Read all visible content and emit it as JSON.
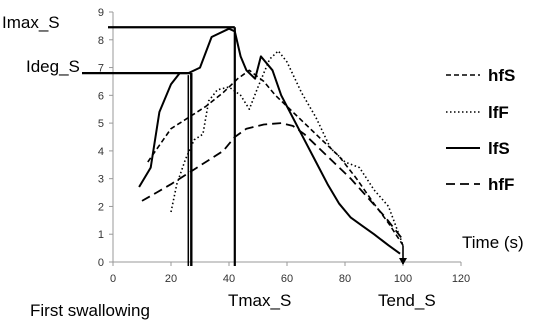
{
  "chart_data": {
    "type": "line",
    "title": "",
    "xlabel": "Time (s)",
    "ylabel": "",
    "xlim": [
      0,
      120
    ],
    "ylim": [
      0,
      9
    ],
    "x_ticks": [
      0,
      20,
      40,
      60,
      80,
      100,
      120
    ],
    "y_ticks": [
      0,
      1,
      2,
      3,
      4,
      5,
      6,
      7,
      8,
      9
    ],
    "grid": false,
    "legend_position": "right",
    "legend": [
      "hfS",
      "lfF",
      "lfS",
      "hfF"
    ],
    "series": [
      {
        "name": "hfS",
        "style": "dashed",
        "points": [
          [
            12,
            3.6
          ],
          [
            16,
            4.2
          ],
          [
            20,
            4.8
          ],
          [
            26,
            5.2
          ],
          [
            32,
            5.6
          ],
          [
            38,
            6.1
          ],
          [
            43,
            6.6
          ],
          [
            47,
            6.9
          ],
          [
            52,
            6.5
          ],
          [
            56,
            6.0
          ],
          [
            60,
            5.6
          ],
          [
            66,
            5.0
          ],
          [
            72,
            4.4
          ],
          [
            78,
            3.8
          ],
          [
            84,
            3.0
          ],
          [
            90,
            2.1
          ],
          [
            95,
            1.4
          ],
          [
            100,
            0.6
          ]
        ]
      },
      {
        "name": "lfF",
        "style": "dotted",
        "points": [
          [
            20,
            1.8
          ],
          [
            22,
            2.8
          ],
          [
            25,
            3.7
          ],
          [
            28,
            4.4
          ],
          [
            31,
            4.6
          ],
          [
            33,
            5.8
          ],
          [
            36,
            6.2
          ],
          [
            40,
            6.3
          ],
          [
            44,
            6.0
          ],
          [
            47,
            5.5
          ],
          [
            50,
            6.3
          ],
          [
            54,
            7.3
          ],
          [
            57,
            7.6
          ],
          [
            60,
            7.2
          ],
          [
            65,
            6.1
          ],
          [
            70,
            5.2
          ],
          [
            75,
            4.1
          ],
          [
            80,
            3.6
          ],
          [
            85,
            3.4
          ],
          [
            90,
            2.6
          ],
          [
            95,
            2.0
          ],
          [
            100,
            0.6
          ]
        ]
      },
      {
        "name": "lfS",
        "style": "solid",
        "points": [
          [
            9,
            2.7
          ],
          [
            13,
            3.4
          ],
          [
            16,
            5.4
          ],
          [
            20,
            6.4
          ],
          [
            23,
            6.8
          ],
          [
            26,
            6.8
          ],
          [
            30,
            7.0
          ],
          [
            34,
            8.1
          ],
          [
            40,
            8.4
          ],
          [
            42,
            8.3
          ],
          [
            44,
            7.4
          ],
          [
            46,
            6.9
          ],
          [
            49,
            6.6
          ],
          [
            51,
            7.4
          ],
          [
            55,
            6.9
          ],
          [
            58,
            6.0
          ],
          [
            62,
            5.2
          ],
          [
            66,
            4.4
          ],
          [
            70,
            3.6
          ],
          [
            74,
            2.8
          ],
          [
            78,
            2.1
          ],
          [
            82,
            1.6
          ],
          [
            86,
            1.3
          ],
          [
            90,
            1.0
          ],
          [
            95,
            0.6
          ],
          [
            99,
            0.3
          ]
        ]
      },
      {
        "name": "hfF",
        "style": "long-dashed",
        "points": [
          [
            10,
            2.2
          ],
          [
            15,
            2.5
          ],
          [
            20,
            2.8
          ],
          [
            26,
            3.2
          ],
          [
            32,
            3.6
          ],
          [
            38,
            4.0
          ],
          [
            42,
            4.5
          ],
          [
            46,
            4.8
          ],
          [
            52,
            4.95
          ],
          [
            58,
            5.0
          ],
          [
            62,
            4.9
          ],
          [
            66,
            4.6
          ],
          [
            70,
            4.2
          ],
          [
            76,
            3.6
          ],
          [
            82,
            3.0
          ],
          [
            88,
            2.3
          ],
          [
            94,
            1.6
          ],
          [
            100,
            0.8
          ]
        ]
      }
    ],
    "annotations": {
      "imax_label": "Imax_S",
      "imax_value": 8.45,
      "ideg_label": "Ideg_S",
      "ideg_value": 6.8,
      "first_swallowing_label": "First swallowing",
      "first_swallowing_x": 27,
      "tmax_label": "Tmax_S",
      "tmax_x": 42,
      "tend_label": "Tend_S",
      "tend_x": 100
    }
  }
}
